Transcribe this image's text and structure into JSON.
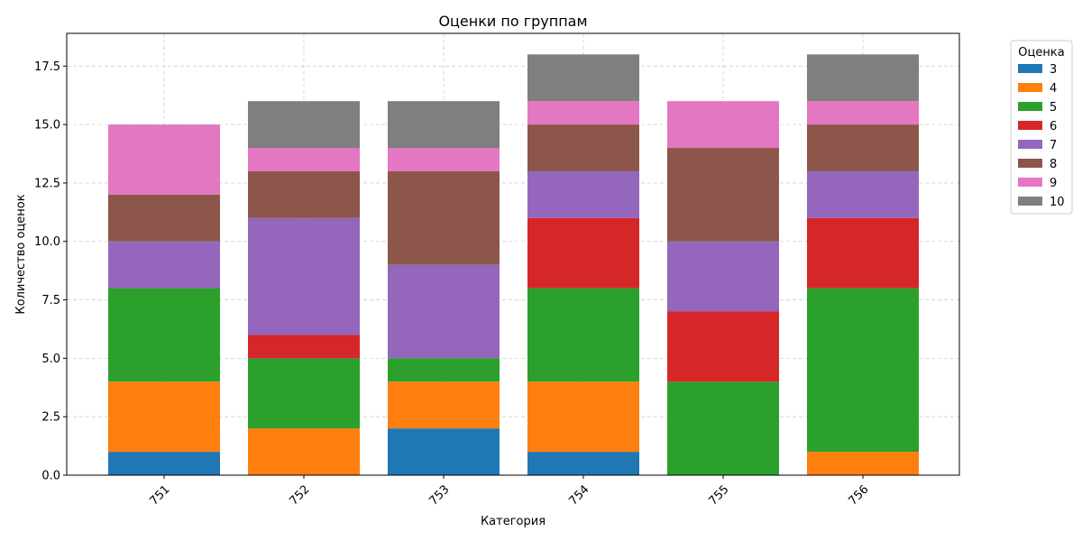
{
  "chart_data": {
    "type": "bar",
    "stacked": true,
    "title": "Оценки по группам",
    "xlabel": "Категория",
    "ylabel": "Количество оценок",
    "categories": [
      "751",
      "752",
      "753",
      "754",
      "755",
      "756"
    ],
    "ylim": [
      0,
      18.9
    ],
    "yticks": [
      "0.0",
      "2.5",
      "5.0",
      "7.5",
      "10.0",
      "12.5",
      "15.0",
      "17.5"
    ],
    "grid": true,
    "legend": {
      "title": "Оценка",
      "placement": "outside-right-top"
    },
    "series": [
      {
        "name": "3",
        "color": "#1f77b4",
        "values": [
          1,
          0,
          2,
          1,
          0,
          0
        ]
      },
      {
        "name": "4",
        "color": "#ff7f0e",
        "values": [
          3,
          2,
          2,
          3,
          0,
          1
        ]
      },
      {
        "name": "5",
        "color": "#2ca02c",
        "values": [
          4,
          3,
          1,
          4,
          4,
          7
        ]
      },
      {
        "name": "6",
        "color": "#d62728",
        "values": [
          0,
          1,
          0,
          3,
          3,
          3
        ]
      },
      {
        "name": "7",
        "color": "#9467bd",
        "values": [
          2,
          5,
          4,
          2,
          3,
          2
        ]
      },
      {
        "name": "8",
        "color": "#8c564b",
        "values": [
          2,
          2,
          4,
          2,
          4,
          2
        ]
      },
      {
        "name": "9",
        "color": "#e377c2",
        "values": [
          3,
          1,
          1,
          1,
          2,
          1
        ]
      },
      {
        "name": "10",
        "color": "#7f7f7f",
        "values": [
          0,
          2,
          2,
          2,
          0,
          2
        ]
      }
    ]
  }
}
